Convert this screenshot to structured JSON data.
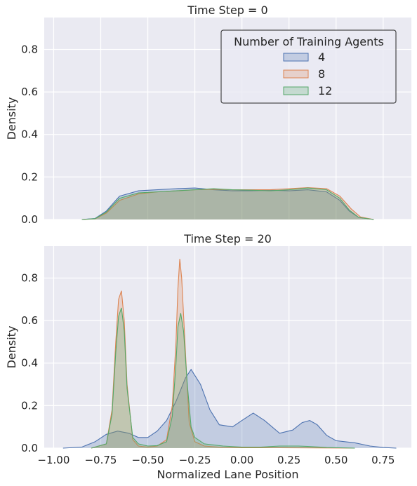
{
  "colors": {
    "background": "#eaeaf2",
    "grid": "#ffffff",
    "series": [
      "#4c72b0",
      "#dd8452",
      "#55a868"
    ]
  },
  "chart_data": {
    "type": "area",
    "xlabel": "Normalized Lane Position",
    "ylabel": "Density",
    "xlim": [
      -1.05,
      0.9
    ],
    "x_ticks": [
      -1.0,
      -0.75,
      -0.5,
      -0.25,
      0.0,
      0.25,
      0.5,
      0.75
    ],
    "x_tick_labels": [
      "−1.00",
      "−0.75",
      "−0.50",
      "−0.25",
      "0.00",
      "0.25",
      "0.50",
      "0.75"
    ],
    "ylim": [
      0,
      0.95
    ],
    "y_ticks": [
      0.0,
      0.2,
      0.4,
      0.6,
      0.8
    ],
    "y_tick_labels": [
      "0.0",
      "0.2",
      "0.4",
      "0.6",
      "0.8"
    ],
    "grid": true,
    "legend": {
      "title": "Number of Training Agents",
      "placement": "top-right",
      "entries": [
        "4",
        "8",
        "12"
      ]
    },
    "panels": [
      {
        "title": "Time Step = 0",
        "series": [
          {
            "name": "4",
            "x": [
              -0.85,
              -0.78,
              -0.72,
              -0.65,
              -0.55,
              -0.45,
              -0.35,
              -0.25,
              -0.15,
              -0.05,
              0.05,
              0.15,
              0.25,
              0.35,
              0.45,
              0.52,
              0.57,
              0.62,
              0.7
            ],
            "y": [
              0,
              0.005,
              0.04,
              0.11,
              0.135,
              0.14,
              0.145,
              0.148,
              0.14,
              0.135,
              0.135,
              0.138,
              0.135,
              0.14,
              0.13,
              0.09,
              0.04,
              0.01,
              0
            ]
          },
          {
            "name": "8",
            "x": [
              -0.85,
              -0.78,
              -0.72,
              -0.65,
              -0.55,
              -0.45,
              -0.35,
              -0.25,
              -0.15,
              -0.05,
              0.05,
              0.15,
              0.25,
              0.35,
              0.45,
              0.52,
              0.58,
              0.63,
              0.7
            ],
            "y": [
              0,
              0.003,
              0.03,
              0.09,
              0.12,
              0.13,
              0.135,
              0.14,
              0.142,
              0.14,
              0.14,
              0.14,
              0.145,
              0.15,
              0.145,
              0.11,
              0.05,
              0.012,
              0
            ]
          },
          {
            "name": "12",
            "x": [
              -0.85,
              -0.78,
              -0.72,
              -0.65,
              -0.55,
              -0.45,
              -0.35,
              -0.25,
              -0.15,
              -0.05,
              0.05,
              0.15,
              0.25,
              0.35,
              0.45,
              0.52,
              0.57,
              0.62,
              0.7
            ],
            "y": [
              0,
              0.004,
              0.035,
              0.1,
              0.125,
              0.13,
              0.135,
              0.14,
              0.145,
              0.14,
              0.138,
              0.135,
              0.14,
              0.148,
              0.14,
              0.1,
              0.045,
              0.01,
              0
            ]
          }
        ]
      },
      {
        "title": "Time Step = 20",
        "series": [
          {
            "name": "4",
            "x": [
              -0.95,
              -0.85,
              -0.78,
              -0.72,
              -0.66,
              -0.6,
              -0.55,
              -0.5,
              -0.45,
              -0.4,
              -0.35,
              -0.3,
              -0.27,
              -0.22,
              -0.17,
              -0.12,
              -0.05,
              0.0,
              0.06,
              0.12,
              0.2,
              0.27,
              0.32,
              0.36,
              0.4,
              0.45,
              0.5,
              0.55,
              0.6,
              0.68,
              0.75,
              0.82
            ],
            "y": [
              0,
              0.005,
              0.03,
              0.065,
              0.08,
              0.07,
              0.05,
              0.05,
              0.08,
              0.13,
              0.22,
              0.33,
              0.37,
              0.3,
              0.18,
              0.11,
              0.1,
              0.13,
              0.165,
              0.13,
              0.07,
              0.085,
              0.12,
              0.13,
              0.11,
              0.06,
              0.035,
              0.03,
              0.025,
              0.01,
              0.003,
              0
            ]
          },
          {
            "name": "8",
            "x": [
              -0.8,
              -0.72,
              -0.69,
              -0.67,
              -0.655,
              -0.64,
              -0.625,
              -0.61,
              -0.58,
              -0.55,
              -0.5,
              -0.45,
              -0.4,
              -0.37,
              -0.35,
              -0.34,
              -0.33,
              -0.32,
              -0.3,
              -0.28,
              -0.25,
              -0.2,
              -0.1,
              0.0,
              0.2,
              0.4,
              0.6
            ],
            "y": [
              0,
              0.02,
              0.18,
              0.5,
              0.7,
              0.74,
              0.6,
              0.3,
              0.04,
              0.01,
              0.005,
              0.01,
              0.04,
              0.2,
              0.5,
              0.75,
              0.89,
              0.8,
              0.45,
              0.12,
              0.03,
              0.01,
              0.003,
              0.002,
              0.002,
              0.001,
              0
            ]
          },
          {
            "name": "12",
            "x": [
              -0.8,
              -0.72,
              -0.69,
              -0.67,
              -0.655,
              -0.64,
              -0.625,
              -0.61,
              -0.58,
              -0.55,
              -0.5,
              -0.45,
              -0.4,
              -0.37,
              -0.35,
              -0.34,
              -0.325,
              -0.31,
              -0.29,
              -0.27,
              -0.25,
              -0.2,
              -0.1,
              0.0,
              0.1,
              0.2,
              0.3,
              0.35,
              0.45,
              0.6
            ],
            "y": [
              0,
              0.02,
              0.16,
              0.45,
              0.62,
              0.66,
              0.55,
              0.28,
              0.05,
              0.02,
              0.01,
              0.012,
              0.03,
              0.15,
              0.4,
              0.57,
              0.635,
              0.55,
              0.3,
              0.1,
              0.05,
              0.02,
              0.01,
              0.005,
              0.005,
              0.01,
              0.01,
              0.008,
              0.003,
              0
            ]
          }
        ]
      }
    ]
  }
}
